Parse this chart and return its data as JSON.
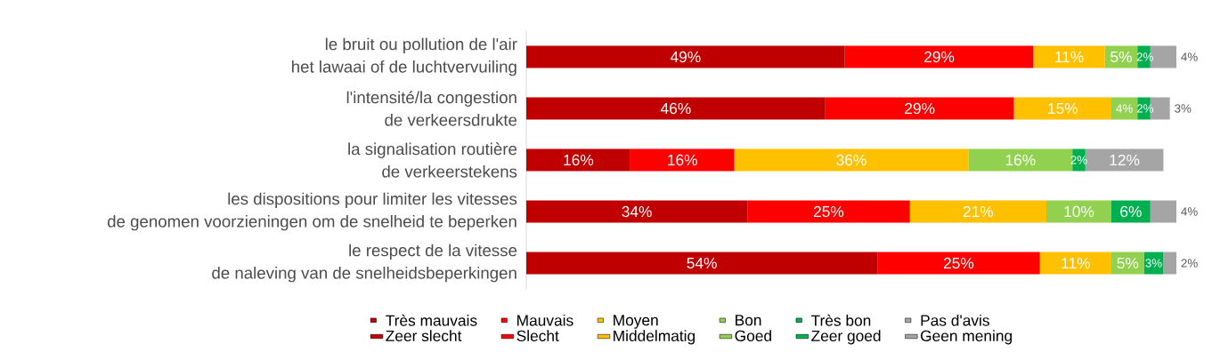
{
  "chart_data": {
    "type": "bar",
    "orientation": "horizontal",
    "stacked": true,
    "categories": [
      "le bruit ou pollution de l'air\nhet lawaai of de luchtvervuiling",
      "l'intensité/la congestion\nde verkeersdrukte",
      "la signalisation routière\nde verkeerstekens",
      "les dispositions pour limiter les vitesses\nde genomen voorzieningen om de snelheid te beperken",
      "le respect de la vitesse\nde naleving van de snelheidsbeperkingen"
    ],
    "series": [
      {
        "name": "Très mauvais",
        "color": "#c00000",
        "values": [
          49,
          46,
          16,
          34,
          54
        ],
        "value_labels": [
          "49%",
          "46%",
          "16%",
          "34%",
          "54%"
        ]
      },
      {
        "name": "Mauvais",
        "color": "#ff0000",
        "values": [
          29,
          29,
          16,
          25,
          25
        ],
        "value_labels": [
          "29%",
          "29%",
          "16%",
          "25%",
          "25%"
        ]
      },
      {
        "name": "Moyen",
        "color": "#ffc000",
        "values": [
          11,
          15,
          36,
          21,
          11
        ],
        "value_labels": [
          "11%",
          "15%",
          "36%",
          "21%",
          "11%"
        ]
      },
      {
        "name": "Bon",
        "color": "#92d050",
        "values": [
          5,
          4,
          16,
          10,
          5
        ],
        "value_labels": [
          "5%",
          "4%",
          "16%",
          "10%",
          "5%"
        ]
      },
      {
        "name": "Très bon",
        "color": "#00b050",
        "values": [
          2,
          2,
          2,
          6,
          3
        ],
        "value_labels": [
          "2%",
          "2%",
          "2%",
          "6%",
          "3%"
        ]
      },
      {
        "name": "Pas d'avis",
        "color": "#a5a5a5",
        "values": [
          4,
          3,
          12,
          4,
          2
        ],
        "value_labels": [
          "4%",
          "3%",
          "12%",
          "4%",
          "2%"
        ]
      },
      {
        "name": "Zeer slecht",
        "color": "#c00000",
        "values": [
          null,
          null,
          null,
          null,
          null
        ]
      },
      {
        "name": "Slecht",
        "color": "#ff0000",
        "values": [
          null,
          null,
          null,
          null,
          null
        ]
      },
      {
        "name": "Middelmatig",
        "color": "#ffc000",
        "values": [
          null,
          null,
          null,
          null,
          null
        ]
      },
      {
        "name": "Goed",
        "color": "#92d050",
        "values": [
          null,
          null,
          null,
          null,
          null
        ]
      },
      {
        "name": "Zeer goed",
        "color": "#00b050",
        "values": [
          null,
          null,
          null,
          null,
          null
        ]
      },
      {
        "name": "Geen mening",
        "color": "#a5a5a5",
        "values": [
          null,
          null,
          null,
          null,
          null
        ]
      }
    ],
    "legend": "bottom"
  }
}
